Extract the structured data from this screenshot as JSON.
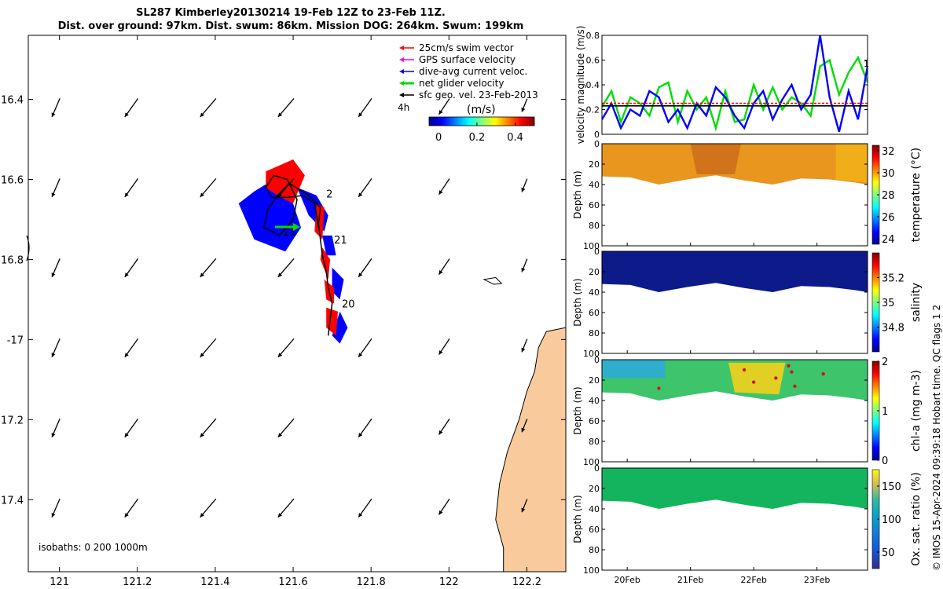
{
  "header": {
    "title_line1": "SL287 Kimberley20130214 19-Feb 12Z to 23-Feb 11Z.",
    "title_line2": "Dist. over ground: 97km. Dist. swum: 86km. Mission DOG: 264km. Swum: 199km"
  },
  "copyright": "© IMOS 15-Apr-2024 09:39:18 Hobart time. QC flags 1  2",
  "colors": {
    "swim_vector": "#ff0000",
    "gps_surface_velocity": "#ff00ff",
    "dive_avg_current": "#0000ff",
    "net_glider_velocity": "#00dd00",
    "sfc_geo_velocity": "#000000",
    "land": "#f9cb9c",
    "track_red": "#ff0000",
    "track_blue": "#0000ff"
  },
  "chart_data": [
    {
      "id": "map",
      "type": "map",
      "xlim": [
        120.92,
        122.3
      ],
      "ylim": [
        -17.58,
        -16.24
      ],
      "x_ticks": [
        121,
        121.2,
        121.4,
        121.6,
        121.8,
        122,
        122.2
      ],
      "x_tick_labels": [
        "121",
        "121.2",
        "121.4",
        "121.6",
        "121.8",
        "122",
        "122.2"
      ],
      "y_ticks": [
        -16.4,
        -16.6,
        -16.8,
        -17,
        -17.2,
        -17.4
      ],
      "y_tick_labels": [
        "16.4",
        "16.6",
        "16.8",
        "-17",
        "17.2",
        "17.4"
      ],
      "legend": [
        {
          "label": "25cm/s swim vector",
          "color_key": "swim_vector"
        },
        {
          "label": "GPS surface velocity",
          "color_key": "gps_surface_velocity"
        },
        {
          "label": "dive-avg current veloc.",
          "color_key": "dive_avg_current"
        },
        {
          "label": "net glider velocity",
          "color_key": "net_glider_velocity"
        },
        {
          "label": "sfc geo. vel. 23-Feb-2013",
          "color_key": "sfc_geo_velocity"
        }
      ],
      "legend_position": "top-right",
      "interval_label": "4h",
      "colorbar": {
        "label": "(m/s)",
        "ticks": [
          0,
          0.2,
          0.4
        ],
        "range": [
          -0.05,
          0.5
        ]
      },
      "isobaths_label": "isobaths: 0   200  1000m",
      "day_labels": [
        {
          "text": "2",
          "lon": 121.685,
          "lat": -16.645
        },
        {
          "text": "21",
          "lon": 121.575,
          "lat": -16.74
        },
        {
          "text": "21",
          "lon": 121.705,
          "lat": -16.76
        },
        {
          "text": "20",
          "lon": 121.725,
          "lat": -16.92
        }
      ],
      "track": [
        [
          121.69,
          -16.99
        ],
        [
          121.695,
          -16.95
        ],
        [
          121.7,
          -16.91
        ],
        [
          121.69,
          -16.87
        ],
        [
          121.685,
          -16.83
        ],
        [
          121.675,
          -16.79
        ],
        [
          121.67,
          -16.75
        ],
        [
          121.665,
          -16.71
        ],
        [
          121.67,
          -16.67
        ],
        [
          121.64,
          -16.64
        ],
        [
          121.59,
          -16.61
        ],
        [
          121.56,
          -16.64
        ],
        [
          121.535,
          -16.675
        ],
        [
          121.525,
          -16.72
        ],
        [
          121.565,
          -16.74
        ],
        [
          121.6,
          -16.7
        ],
        [
          121.61,
          -16.65
        ],
        [
          121.585,
          -16.6
        ],
        [
          121.55,
          -16.59
        ],
        [
          121.53,
          -16.62
        ],
        [
          121.545,
          -16.645
        ],
        [
          121.585,
          -16.645
        ],
        [
          121.625,
          -16.64
        ],
        [
          121.655,
          -16.66
        ],
        [
          121.665,
          -16.72
        ]
      ],
      "red_blobs": [
        [
          [
            121.53,
            -16.58
          ],
          [
            121.6,
            -16.55
          ],
          [
            121.63,
            -16.59
          ],
          [
            121.6,
            -16.66
          ],
          [
            121.56,
            -16.64
          ],
          [
            121.53,
            -16.62
          ]
        ],
        [
          [
            121.66,
            -16.66
          ],
          [
            121.68,
            -16.67
          ],
          [
            121.675,
            -16.75
          ],
          [
            121.655,
            -16.73
          ]
        ],
        [
          [
            121.675,
            -16.77
          ],
          [
            121.695,
            -16.8
          ],
          [
            121.69,
            -16.85
          ],
          [
            121.67,
            -16.8
          ]
        ],
        [
          [
            121.68,
            -16.85
          ],
          [
            121.705,
            -16.87
          ],
          [
            121.705,
            -16.91
          ],
          [
            121.685,
            -16.9
          ]
        ],
        [
          [
            121.685,
            -16.92
          ],
          [
            121.715,
            -16.93
          ],
          [
            121.71,
            -16.99
          ],
          [
            121.685,
            -16.97
          ]
        ]
      ],
      "blue_blobs": [
        [
          [
            121.55,
            -16.6
          ],
          [
            121.5,
            -16.63
          ],
          [
            121.46,
            -16.66
          ],
          [
            121.5,
            -16.75
          ],
          [
            121.58,
            -16.78
          ],
          [
            121.62,
            -16.72
          ],
          [
            121.6,
            -16.66
          ],
          [
            121.57,
            -16.64
          ]
        ],
        [
          [
            121.61,
            -16.62
          ],
          [
            121.66,
            -16.64
          ],
          [
            121.69,
            -16.69
          ],
          [
            121.68,
            -16.73
          ],
          [
            121.64,
            -16.69
          ]
        ],
        [
          [
            121.675,
            -16.74
          ],
          [
            121.7,
            -16.74
          ],
          [
            121.71,
            -16.79
          ],
          [
            121.685,
            -16.79
          ]
        ],
        [
          [
            121.7,
            -16.82
          ],
          [
            121.73,
            -16.85
          ],
          [
            121.72,
            -16.9
          ],
          [
            121.7,
            -16.88
          ]
        ],
        [
          [
            121.72,
            -16.93
          ],
          [
            121.74,
            -16.97
          ],
          [
            121.72,
            -17.01
          ],
          [
            121.7,
            -16.99
          ]
        ]
      ],
      "arrow_grid": {
        "lons": [
          121,
          121.2,
          121.4,
          121.6,
          121.8,
          122,
          122.2
        ],
        "lats": [
          -16.4,
          -16.6,
          -16.8,
          -17,
          -17.2,
          -17.4
        ],
        "u": [
          -0.03,
          -0.05,
          -0.06,
          -0.06,
          -0.05,
          -0.04,
          -0.02
        ],
        "v": [
          -0.07,
          -0.07,
          -0.07,
          -0.07,
          -0.07,
          -0.06,
          -0.05
        ]
      },
      "coast": [
        [
          122.3,
          -16.97
        ],
        [
          122.25,
          -16.98
        ],
        [
          122.23,
          -17.02
        ],
        [
          122.22,
          -17.08
        ],
        [
          122.2,
          -17.13
        ],
        [
          122.18,
          -17.2
        ],
        [
          122.15,
          -17.28
        ],
        [
          122.13,
          -17.36
        ],
        [
          122.12,
          -17.45
        ],
        [
          122.14,
          -17.52
        ],
        [
          122.14,
          -17.58
        ],
        [
          122.3,
          -17.58
        ]
      ],
      "islands": [
        [
          [
            122.09,
            -16.85
          ],
          [
            122.12,
            -16.845
          ],
          [
            122.135,
            -16.86
          ],
          [
            122.115,
            -16.862
          ]
        ]
      ]
    },
    {
      "id": "velocity",
      "type": "line",
      "ylabel": "velocity magnitude (m/s)",
      "x_range": [
        19.6,
        23.8
      ],
      "ylim": [
        0,
        0.8
      ],
      "y_ticks": [
        0,
        0.2,
        0.4,
        0.6,
        0.8
      ],
      "y_tick_labels": [
        "0",
        "0.2",
        "0.4",
        "0.6",
        "0.8"
      ],
      "right_marker": "1",
      "series": [
        {
          "name": "net glider velocity",
          "color_key": "net_glider_velocity",
          "x": [
            19.6,
            19.75,
            19.9,
            20.05,
            20.2,
            20.35,
            20.5,
            20.65,
            20.8,
            20.95,
            21.1,
            21.25,
            21.4,
            21.55,
            21.7,
            21.85,
            22.0,
            22.15,
            22.3,
            22.45,
            22.6,
            22.75,
            22.9,
            23.05,
            23.2,
            23.35,
            23.5,
            23.65,
            23.8
          ],
          "y": [
            0.22,
            0.35,
            0.1,
            0.3,
            0.25,
            0.15,
            0.38,
            0.42,
            0.1,
            0.35,
            0.2,
            0.3,
            0.05,
            0.35,
            0.1,
            0.12,
            0.4,
            0.2,
            0.38,
            0.2,
            0.3,
            0.25,
            0.15,
            0.55,
            0.6,
            0.32,
            0.5,
            0.62,
            0.42
          ]
        },
        {
          "name": "dive-avg current veloc.",
          "color_key": "dive_avg_current",
          "x": [
            19.6,
            19.75,
            19.9,
            20.05,
            20.2,
            20.35,
            20.5,
            20.65,
            20.8,
            20.95,
            21.1,
            21.25,
            21.4,
            21.55,
            21.7,
            21.85,
            22.0,
            22.15,
            22.3,
            22.45,
            22.6,
            22.75,
            22.9,
            23.05,
            23.2,
            23.35,
            23.5,
            23.65,
            23.8
          ],
          "y": [
            0.12,
            0.25,
            0.05,
            0.2,
            0.15,
            0.35,
            0.3,
            0.1,
            0.2,
            0.05,
            0.25,
            0.15,
            0.38,
            0.3,
            0.15,
            0.05,
            0.25,
            0.35,
            0.12,
            0.28,
            0.4,
            0.2,
            0.32,
            0.8,
            0.3,
            0.02,
            0.35,
            0.12,
            0.55
          ]
        },
        {
          "name": "swim speed",
          "color_key": "swim_vector",
          "x": [
            19.6,
            23.8
          ],
          "y": [
            0.25,
            0.25
          ]
        },
        {
          "name": "sfc geo. vel.",
          "color_key": "sfc_geo_velocity",
          "x": [
            19.6,
            23.8
          ],
          "y": [
            0.23,
            0.23
          ]
        }
      ]
    },
    {
      "id": "temperature",
      "type": "heatmap",
      "ylabel": "Depth (m)",
      "colorbar_label": "temperature (°C)",
      "colorbar_range": [
        23.5,
        32.5
      ],
      "colorbar_ticks": [
        24,
        26,
        28,
        30,
        32
      ],
      "ylim": [
        0,
        100
      ],
      "y_ticks": [
        0,
        20,
        40,
        60,
        80,
        100
      ],
      "x_range": [
        19.6,
        23.8
      ],
      "profile_depth": [
        [
          19.6,
          32
        ],
        [
          20.05,
          33
        ],
        [
          20.5,
          40
        ],
        [
          20.95,
          35
        ],
        [
          21.4,
          31
        ],
        [
          21.85,
          36
        ],
        [
          22.3,
          40
        ],
        [
          22.75,
          34
        ],
        [
          23.2,
          35
        ],
        [
          23.6,
          38
        ],
        [
          23.8,
          40
        ]
      ],
      "typical_value": 30.6
    },
    {
      "id": "salinity",
      "type": "heatmap",
      "ylabel": "Depth (m)",
      "colorbar_label": "salinity",
      "colorbar_range": [
        34.6,
        35.4
      ],
      "colorbar_ticks": [
        34.8,
        35,
        35.2
      ],
      "ylim": [
        0,
        100
      ],
      "y_ticks": [
        0,
        20,
        40,
        60,
        80,
        100
      ],
      "x_range": [
        19.6,
        23.8
      ],
      "typical_value": 34.6
    },
    {
      "id": "chlorophyll",
      "type": "heatmap",
      "ylabel": "Depth (m)",
      "colorbar_label": "chl-a (mg m-3)",
      "colorbar_range": [
        0,
        2
      ],
      "colorbar_ticks": [
        0,
        1,
        2
      ],
      "ylim": [
        0,
        100
      ],
      "y_ticks": [
        0,
        20,
        40,
        60,
        80,
        100
      ],
      "x_range": [
        19.6,
        23.8
      ],
      "typical_value": 0.8
    },
    {
      "id": "oxygen",
      "type": "heatmap",
      "ylabel": "Depth (m)",
      "colorbar_label": "Ox. sat. ratio (%)",
      "colorbar_range": [
        25,
        175
      ],
      "colorbar_ticks": [
        50,
        100,
        150
      ],
      "ylim": [
        0,
        100
      ],
      "y_ticks": [
        0,
        20,
        40,
        60,
        80,
        100
      ],
      "x_range": [
        19.6,
        23.8
      ],
      "x_ticks": [
        20,
        21,
        22,
        23
      ],
      "x_tick_labels": [
        "20Feb",
        "21Feb",
        "22Feb",
        "23Feb"
      ],
      "typical_value": 100
    }
  ]
}
